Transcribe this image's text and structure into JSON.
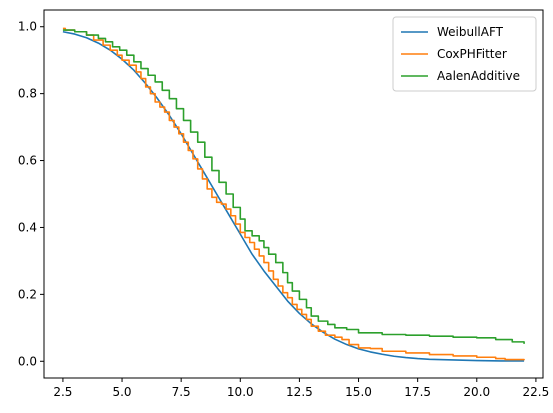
{
  "chart_data": {
    "type": "line",
    "title": "",
    "xlabel": "",
    "ylabel": "",
    "xlim": [
      1.7,
      22.8
    ],
    "ylim": [
      -0.05,
      1.05
    ],
    "xticks": [
      "2.5",
      "5.0",
      "7.5",
      "10.0",
      "12.5",
      "15.0",
      "17.5",
      "20.0",
      "22.5"
    ],
    "yticks": [
      "0.0",
      "0.2",
      "0.4",
      "0.6",
      "0.8",
      "1.0"
    ],
    "legend_position": "top-right",
    "grid": false,
    "series": [
      {
        "name": "WeibullAFT",
        "color": "#1f77b4",
        "step": false,
        "x": [
          2.5,
          3,
          3.5,
          4,
          4.5,
          5,
          5.5,
          6,
          6.5,
          7,
          7.5,
          8,
          8.5,
          9,
          9.5,
          10,
          10.5,
          11,
          11.5,
          12,
          12.5,
          13,
          13.5,
          14,
          14.5,
          15,
          15.5,
          16,
          16.5,
          17,
          17.5,
          18,
          19,
          20,
          21,
          22
        ],
        "y": [
          0.985,
          0.978,
          0.967,
          0.951,
          0.93,
          0.903,
          0.87,
          0.83,
          0.785,
          0.735,
          0.68,
          0.62,
          0.56,
          0.5,
          0.44,
          0.38,
          0.32,
          0.27,
          0.225,
          0.18,
          0.143,
          0.112,
          0.087,
          0.066,
          0.05,
          0.037,
          0.028,
          0.021,
          0.015,
          0.011,
          0.008,
          0.006,
          0.004,
          0.002,
          0.001,
          0.001
        ]
      },
      {
        "name": "CoxPHFitter",
        "color": "#ff7f0e",
        "step": true,
        "x": [
          2.5,
          2.6,
          3.0,
          3.5,
          3.8,
          4.2,
          4.5,
          4.8,
          5.0,
          5.3,
          5.6,
          5.8,
          6.0,
          6.2,
          6.4,
          6.6,
          6.8,
          7.0,
          7.2,
          7.4,
          7.6,
          7.8,
          8.0,
          8.2,
          8.4,
          8.6,
          8.8,
          9.0,
          9.2,
          9.4,
          9.6,
          9.8,
          10.0,
          10.2,
          10.4,
          10.6,
          10.8,
          11.0,
          11.2,
          11.4,
          11.6,
          11.8,
          12.0,
          12.2,
          12.4,
          12.6,
          12.8,
          13.0,
          13.3,
          13.6,
          14.0,
          14.3,
          14.6,
          15.0,
          15.5,
          16.0,
          17.0,
          18.0,
          19.0,
          20.0,
          20.8,
          21.2,
          22.0
        ],
        "y": [
          0.995,
          0.99,
          0.985,
          0.975,
          0.96,
          0.945,
          0.93,
          0.915,
          0.9,
          0.885,
          0.865,
          0.845,
          0.82,
          0.8,
          0.775,
          0.76,
          0.745,
          0.72,
          0.7,
          0.68,
          0.655,
          0.63,
          0.605,
          0.575,
          0.545,
          0.515,
          0.49,
          0.475,
          0.47,
          0.455,
          0.435,
          0.41,
          0.385,
          0.37,
          0.355,
          0.335,
          0.315,
          0.295,
          0.27,
          0.245,
          0.225,
          0.205,
          0.19,
          0.17,
          0.155,
          0.14,
          0.125,
          0.105,
          0.09,
          0.078,
          0.072,
          0.065,
          0.05,
          0.04,
          0.038,
          0.03,
          0.025,
          0.02,
          0.016,
          0.012,
          0.008,
          0.005,
          0.003
        ]
      },
      {
        "name": "AalenAdditive",
        "color": "#2ca02c",
        "step": true,
        "x": [
          2.5,
          3.0,
          3.5,
          4.0,
          4.3,
          4.6,
          4.9,
          5.2,
          5.5,
          5.8,
          6.1,
          6.4,
          6.7,
          7.0,
          7.3,
          7.6,
          7.9,
          8.2,
          8.5,
          8.8,
          9.1,
          9.4,
          9.7,
          10.0,
          10.2,
          10.5,
          10.8,
          11.0,
          11.2,
          11.5,
          11.8,
          12.0,
          12.2,
          12.5,
          12.8,
          13.0,
          13.3,
          13.7,
          14.0,
          14.5,
          15.0,
          16.0,
          17.0,
          18.0,
          19.0,
          20.0,
          20.8,
          21.5,
          22.0
        ],
        "y": [
          0.99,
          0.985,
          0.975,
          0.965,
          0.955,
          0.94,
          0.93,
          0.915,
          0.895,
          0.875,
          0.855,
          0.835,
          0.81,
          0.785,
          0.755,
          0.72,
          0.685,
          0.655,
          0.61,
          0.57,
          0.535,
          0.5,
          0.46,
          0.425,
          0.39,
          0.375,
          0.36,
          0.34,
          0.32,
          0.295,
          0.265,
          0.235,
          0.21,
          0.185,
          0.16,
          0.135,
          0.12,
          0.11,
          0.1,
          0.095,
          0.085,
          0.08,
          0.078,
          0.075,
          0.072,
          0.07,
          0.065,
          0.058,
          0.052
        ]
      }
    ]
  }
}
